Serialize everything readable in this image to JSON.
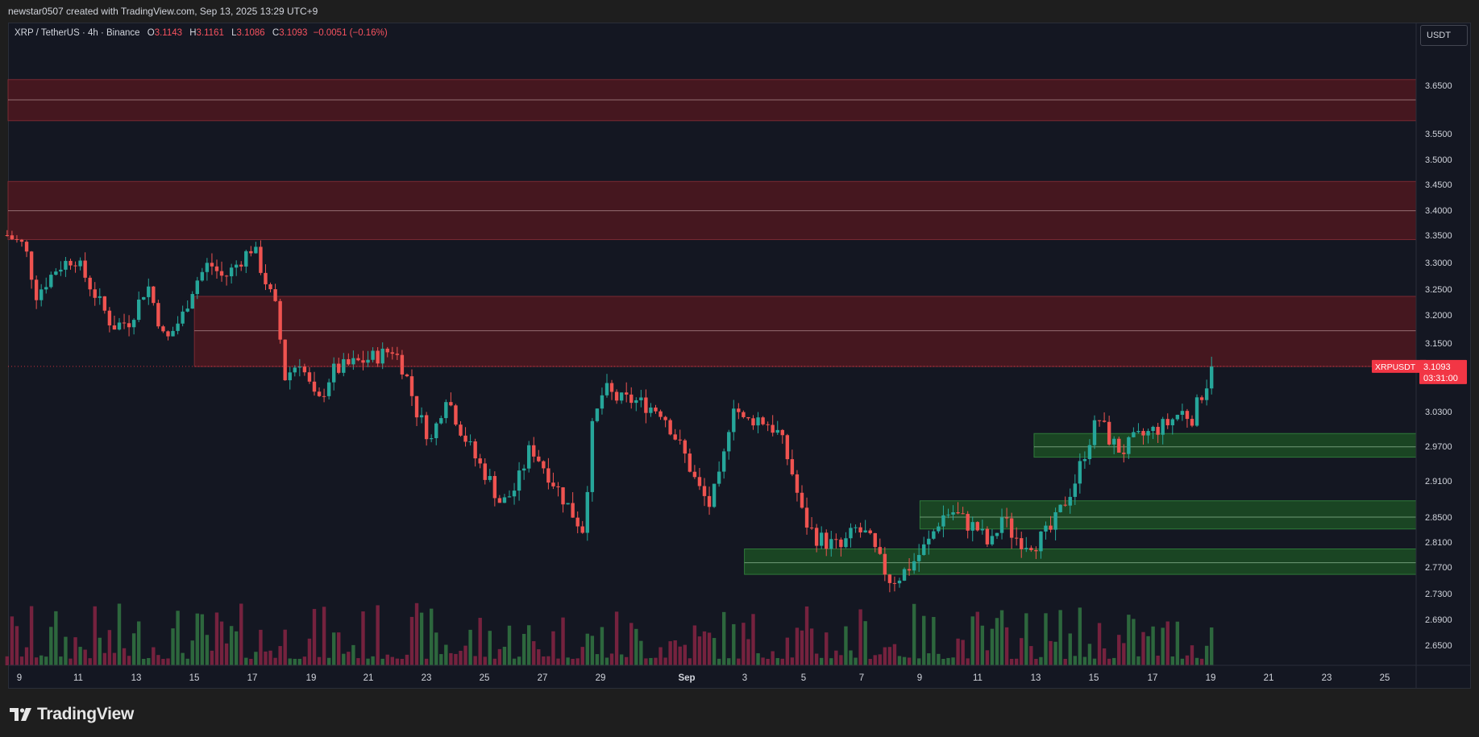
{
  "header": {
    "attribution": "newstar0507 created with TradingView.com, Sep 13, 2025 13:29 UTC+9"
  },
  "legend": {
    "symbol": "XRP / TetherUS · 4h · Binance",
    "open_label": "O",
    "open": "3.1143",
    "high_label": "H",
    "high": "3.1161",
    "low_label": "L",
    "low": "3.1086",
    "close_label": "C",
    "close": "3.1093",
    "change": "−0.0051 (−0.16%)"
  },
  "currency": "USDT",
  "price_tag": {
    "ticker": "XRPUSDT",
    "price": "3.1093",
    "countdown": "03:31:00"
  },
  "footer": {
    "brand": "TradingView"
  },
  "colors": {
    "bull": "#26a69a",
    "bear": "#ef5350",
    "supply_zone": "#4a1820",
    "demand_zone": "#1b4a24",
    "background": "#141722",
    "tag": "#f23645"
  },
  "chart_data": {
    "type": "candlestick",
    "symbol": "XRP / TetherUS",
    "interval": "4h",
    "exchange": "Binance",
    "last_price": 3.1093,
    "y_ticks": [
      "3.6500",
      "3.5500",
      "3.5000",
      "3.4500",
      "3.4000",
      "3.3500",
      "3.3000",
      "3.2500",
      "3.2000",
      "3.1500",
      "3.0300",
      "2.9700",
      "2.9100",
      "2.8500",
      "2.8100",
      "2.7700",
      "2.7300",
      "2.6900",
      "2.6500"
    ],
    "y_range": [
      2.61,
      3.73
    ],
    "x_ticks": [
      "9",
      "11",
      "13",
      "15",
      "17",
      "19",
      "21",
      "23",
      "25",
      "27",
      "29",
      "Sep",
      "3",
      "5",
      "7",
      "9",
      "11",
      "13",
      "15",
      "17",
      "19",
      "21",
      "23",
      "25"
    ],
    "x_day_range": [
      -23.2,
      26.0
    ],
    "supply_zones": [
      {
        "top": 3.662,
        "mid": 3.62,
        "bottom": 3.577,
        "from_day": -23.2
      },
      {
        "top": 3.456,
        "mid": 3.399,
        "bottom": 3.342,
        "from_day": -23.2
      },
      {
        "top": 3.236,
        "mid": 3.172,
        "bottom": 3.109,
        "from_day": -16.8
      }
    ],
    "demand_zones": [
      {
        "top": 2.992,
        "mid": 2.969,
        "bottom": 2.951,
        "from_day": 11.9
      },
      {
        "top": 2.877,
        "mid": 2.85,
        "bottom": 2.831,
        "from_day": 8.0
      },
      {
        "top": 2.799,
        "mid": 2.777,
        "bottom": 2.759,
        "from_day": 2.0
      }
    ],
    "price_path": [
      [
        -23.2,
        3.35
      ],
      [
        -22.6,
        3.33
      ],
      [
        -22.2,
        3.24
      ],
      [
        -21.5,
        3.29
      ],
      [
        -20.9,
        3.31
      ],
      [
        -20.3,
        3.25
      ],
      [
        -19.6,
        3.18
      ],
      [
        -19.0,
        3.19
      ],
      [
        -18.4,
        3.26
      ],
      [
        -17.8,
        3.15
      ],
      [
        -17.2,
        3.2
      ],
      [
        -16.8,
        3.26
      ],
      [
        -16.3,
        3.3
      ],
      [
        -15.8,
        3.27
      ],
      [
        -15.3,
        3.3
      ],
      [
        -14.8,
        3.33
      ],
      [
        -14.4,
        3.27
      ],
      [
        -14.0,
        3.21
      ],
      [
        -13.7,
        3.09
      ],
      [
        -13.2,
        3.12
      ],
      [
        -12.6,
        3.04
      ],
      [
        -12.1,
        3.1
      ],
      [
        -11.6,
        3.11
      ],
      [
        -11.0,
        3.12
      ],
      [
        -10.4,
        3.13
      ],
      [
        -10.0,
        3.14
      ],
      [
        -9.6,
        3.1
      ],
      [
        -9.2,
        3.03
      ],
      [
        -8.7,
        2.98
      ],
      [
        -8.2,
        3.06
      ],
      [
        -7.7,
        3.0
      ],
      [
        -7.2,
        2.95
      ],
      [
        -6.7,
        2.91
      ],
      [
        -6.3,
        2.87
      ],
      [
        -5.8,
        2.9
      ],
      [
        -5.3,
        2.97
      ],
      [
        -4.8,
        2.93
      ],
      [
        -4.3,
        2.89
      ],
      [
        -3.8,
        2.85
      ],
      [
        -3.5,
        2.83
      ],
      [
        -3.2,
        3.0
      ],
      [
        -2.8,
        3.07
      ],
      [
        -2.3,
        3.05
      ],
      [
        -1.8,
        3.05
      ],
      [
        -1.3,
        3.04
      ],
      [
        -0.8,
        3.03
      ],
      [
        -0.4,
        2.99
      ],
      [
        0.0,
        2.95
      ],
      [
        0.4,
        2.9
      ],
      [
        0.8,
        2.87
      ],
      [
        1.2,
        2.92
      ],
      [
        1.6,
        3.05
      ],
      [
        2.0,
        3.01
      ],
      [
        2.4,
        3.02
      ],
      [
        2.8,
        3.01
      ],
      [
        3.2,
        2.99
      ],
      [
        3.6,
        2.93
      ],
      [
        4.0,
        2.85
      ],
      [
        4.4,
        2.82
      ],
      [
        4.8,
        2.81
      ],
      [
        5.3,
        2.8
      ],
      [
        5.8,
        2.83
      ],
      [
        6.2,
        2.82
      ],
      [
        6.6,
        2.78
      ],
      [
        7.0,
        2.75
      ],
      [
        7.4,
        2.76
      ],
      [
        7.8,
        2.78
      ],
      [
        8.3,
        2.81
      ],
      [
        8.7,
        2.85
      ],
      [
        9.1,
        2.86
      ],
      [
        9.6,
        2.84
      ],
      [
        10.0,
        2.83
      ],
      [
        10.4,
        2.8
      ],
      [
        10.8,
        2.85
      ],
      [
        11.2,
        2.82
      ],
      [
        11.6,
        2.81
      ],
      [
        12.0,
        2.81
      ],
      [
        12.5,
        2.83
      ],
      [
        12.9,
        2.87
      ],
      [
        13.3,
        2.91
      ],
      [
        13.7,
        2.97
      ],
      [
        14.1,
        3.02
      ],
      [
        14.5,
        2.98
      ],
      [
        14.9,
        2.96
      ],
      [
        15.3,
        2.98
      ],
      [
        15.7,
        2.99
      ],
      [
        16.1,
        3.0
      ],
      [
        16.5,
        3.01
      ],
      [
        16.9,
        3.03
      ],
      [
        17.3,
        3.02
      ],
      [
        17.7,
        3.07
      ],
      [
        18.1,
        3.11
      ]
    ]
  }
}
